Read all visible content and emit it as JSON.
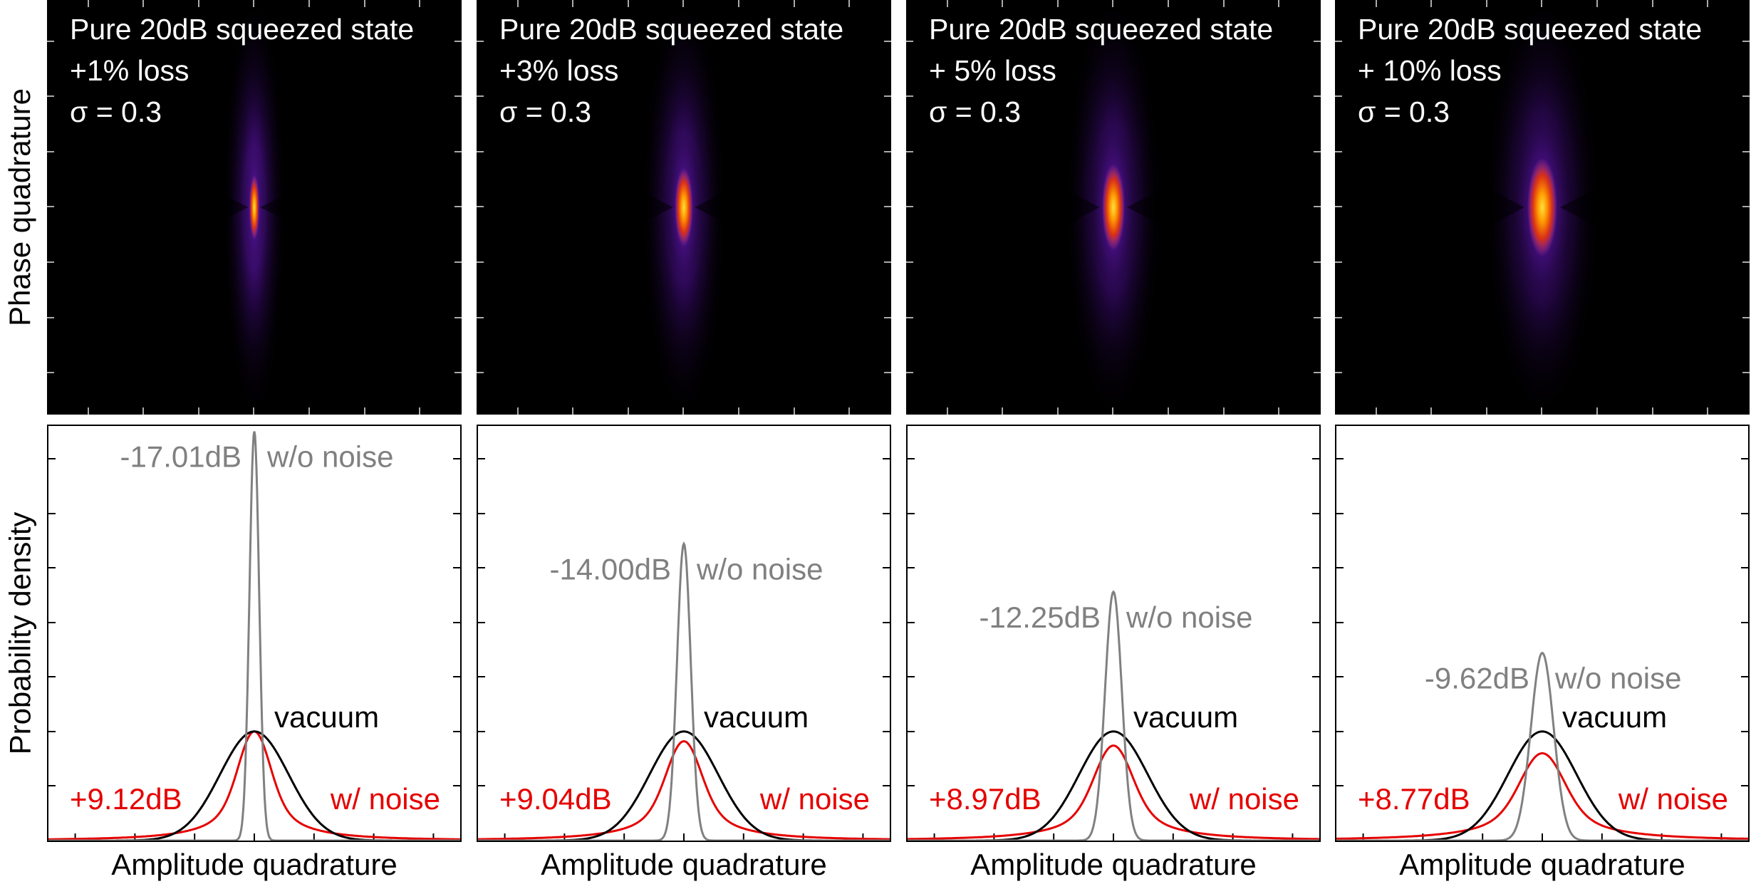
{
  "figure": {
    "top_ylabel": "Phase quadrature",
    "bottom_ylabel": "Probability density"
  },
  "chart_data": [
    {
      "type": "heatmap",
      "title_lines": [
        "Pure 20dB squeezed state",
        "+1% loss",
        "σ = 0.3"
      ],
      "xlabel": "",
      "ylabel": "Phase quadrature",
      "ellipse": {
        "squeezed_db": -17.01,
        "anti_squeezed_db": 9.12
      },
      "colormap": [
        "#000000",
        "#3a0a70",
        "#7a22d8",
        "#c040a0",
        "#e03010",
        "#ff9a00",
        "#ffe040"
      ]
    },
    {
      "type": "heatmap",
      "title_lines": [
        "Pure 20dB squeezed state",
        "+3% loss",
        "σ = 0.3"
      ],
      "xlabel": "",
      "ylabel": "",
      "ellipse": {
        "squeezed_db": -14.0,
        "anti_squeezed_db": 9.04
      },
      "colormap": [
        "#000000",
        "#3a0a70",
        "#7a22d8",
        "#c040a0",
        "#e03010",
        "#ff9a00",
        "#ffe040"
      ]
    },
    {
      "type": "heatmap",
      "title_lines": [
        "Pure 20dB squeezed state",
        "+ 5% loss",
        "σ = 0.3"
      ],
      "xlabel": "",
      "ylabel": "",
      "ellipse": {
        "squeezed_db": -12.25,
        "anti_squeezed_db": 8.97
      },
      "colormap": [
        "#000000",
        "#3a0a70",
        "#7a22d8",
        "#c040a0",
        "#e03010",
        "#ff9a00",
        "#ffe040"
      ]
    },
    {
      "type": "heatmap",
      "title_lines": [
        "Pure 20dB squeezed state",
        "+ 10% loss",
        "σ = 0.3"
      ],
      "xlabel": "",
      "ylabel": "",
      "ellipse": {
        "squeezed_db": -9.62,
        "anti_squeezed_db": 8.77
      },
      "colormap": [
        "#000000",
        "#3a0a70",
        "#7a22d8",
        "#c040a0",
        "#e03010",
        "#ff9a00",
        "#ffe040"
      ]
    },
    {
      "type": "line",
      "xlabel": "Amplitude quadrature",
      "ylabel": "Probability density",
      "x_range": [
        -3,
        3
      ],
      "y_range": [
        0,
        3.8
      ],
      "series": [
        {
          "name": "w/o noise",
          "label": "-17.01dB",
          "color": "#808080",
          "shape": "gaussian",
          "peak": 3.75,
          "width": 0.071
        },
        {
          "name": "vacuum",
          "color": "#000000",
          "shape": "gaussian",
          "peak": 1.0,
          "width": 0.5
        },
        {
          "name": "w/ noise",
          "label": "+9.12dB",
          "color": "#e60000",
          "shape": "pseudo-voigt",
          "peak": 1.0,
          "width": 0.22
        }
      ]
    },
    {
      "type": "line",
      "xlabel": "Amplitude quadrature",
      "ylabel": "",
      "x_range": [
        -3,
        3
      ],
      "y_range": [
        0,
        3.8
      ],
      "series": [
        {
          "name": "w/o noise",
          "label": "-14.00dB",
          "color": "#808080",
          "shape": "gaussian",
          "peak": 2.72,
          "width": 0.1
        },
        {
          "name": "vacuum",
          "color": "#000000",
          "shape": "gaussian",
          "peak": 1.0,
          "width": 0.5
        },
        {
          "name": "w/ noise",
          "label": "+9.04dB",
          "color": "#e60000",
          "shape": "pseudo-voigt",
          "peak": 0.91,
          "width": 0.24
        }
      ]
    },
    {
      "type": "line",
      "xlabel": "Amplitude quadrature",
      "ylabel": "",
      "x_range": [
        -3,
        3
      ],
      "y_range": [
        0,
        3.8
      ],
      "series": [
        {
          "name": "w/o noise",
          "label": "-12.25dB",
          "color": "#808080",
          "shape": "gaussian",
          "peak": 2.28,
          "width": 0.122
        },
        {
          "name": "vacuum",
          "color": "#000000",
          "shape": "gaussian",
          "peak": 1.0,
          "width": 0.5
        },
        {
          "name": "w/ noise",
          "label": "+8.97dB",
          "color": "#e60000",
          "shape": "pseudo-voigt",
          "peak": 0.87,
          "width": 0.26
        }
      ]
    },
    {
      "type": "line",
      "xlabel": "Amplitude quadrature",
      "ylabel": "",
      "x_range": [
        -3,
        3
      ],
      "y_range": [
        0,
        3.8
      ],
      "series": [
        {
          "name": "w/o noise",
          "label": "-9.62dB",
          "color": "#808080",
          "shape": "gaussian",
          "peak": 1.72,
          "width": 0.165
        },
        {
          "name": "vacuum",
          "color": "#000000",
          "shape": "gaussian",
          "peak": 1.0,
          "width": 0.5
        },
        {
          "name": "w/ noise",
          "label": "+8.77dB",
          "color": "#e60000",
          "shape": "pseudo-voigt",
          "peak": 0.8,
          "width": 0.3
        }
      ]
    }
  ]
}
